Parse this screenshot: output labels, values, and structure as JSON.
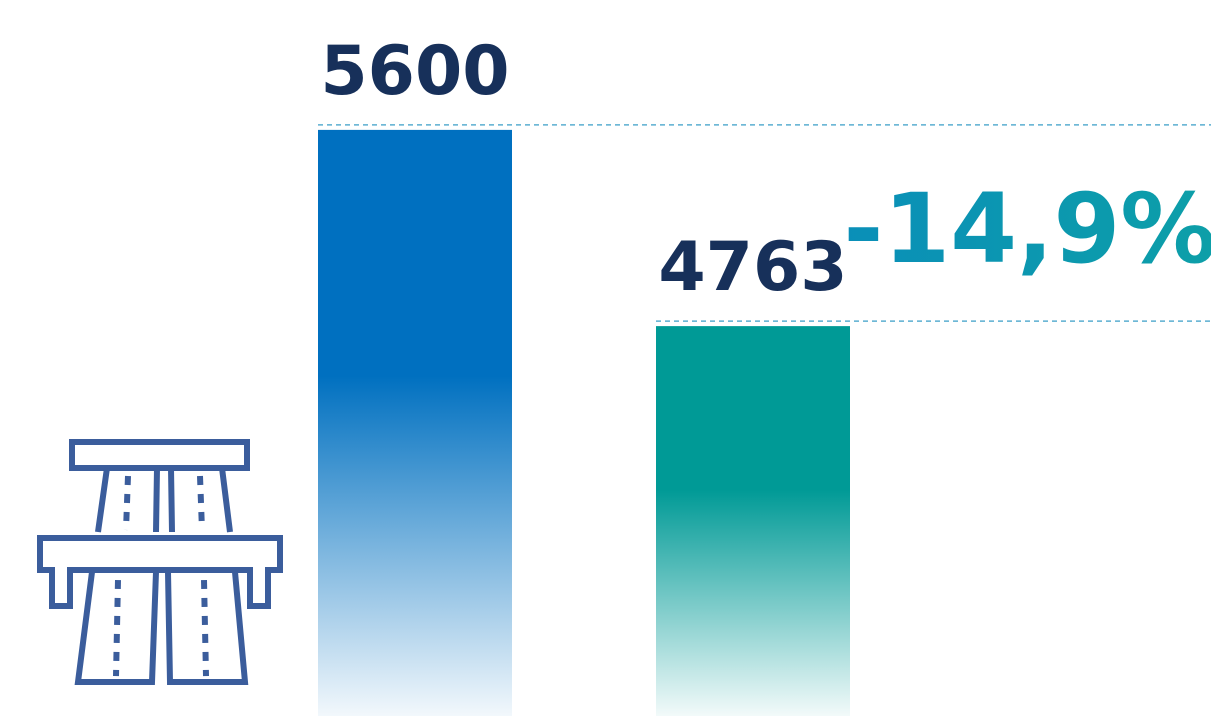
{
  "chart_data": {
    "type": "bar",
    "categories": [
      null,
      null
    ],
    "values": [
      5600,
      4763
    ],
    "colors": [
      "#0070c0",
      "#009a96"
    ],
    "annotation": "-14,9%",
    "annotation_color": "#0a8fb8",
    "ylim": [
      3100,
      5800
    ]
  }
}
